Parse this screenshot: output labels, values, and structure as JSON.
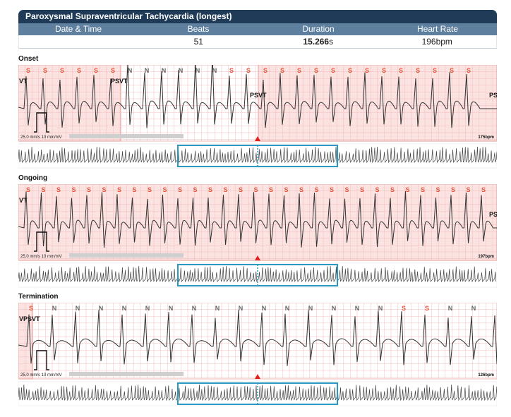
{
  "report": {
    "title": "Paroxysmal Supraventricular Tachycardia (longest)",
    "columns": [
      "Date & Time",
      "Beats",
      "Duration",
      "Heart Rate"
    ],
    "values": {
      "date_time": "",
      "beats": "51",
      "duration_num": "15.266",
      "duration_unit": "s",
      "heart_rate": "196bpm"
    }
  },
  "colors": {
    "header_dark": "#1f3b57",
    "header_mid": "#5f7f9e",
    "event_shade": "#fbe3e1",
    "grid": "#f4bcbc",
    "trace": "#333333",
    "s_label": "#e4553e",
    "n_label": "#666666",
    "marker": "#e0211c",
    "overview_box": "#2a9ac2",
    "scale_bar": "#cfcfcf"
  },
  "scale_text": "25.0 mm/s  10 mm/mV",
  "sections": [
    {
      "label": "Onset",
      "rate": "175bpm",
      "left_labels": [
        "VT",
        "PSVT"
      ],
      "mid_label": "PSVT",
      "right_label": "PS",
      "beats": "SSSSSSNNNNNNSSSSSSSSSSSSSSS"
    },
    {
      "label": "Ongoing",
      "rate": "197bpm",
      "left_labels": [
        "VT"
      ],
      "mid_label": "",
      "right_label": "PS",
      "beats": "SSSSSSSSSSSSSSSSSSSSSSSSSSSSSSS"
    },
    {
      "label": "Termination",
      "rate": "126bpm",
      "left_labels": [
        "VPSVT"
      ],
      "mid_label": "",
      "right_label": "",
      "beats": "SNNNNNNNNNNNNNNNSSNNNN"
    }
  ]
}
